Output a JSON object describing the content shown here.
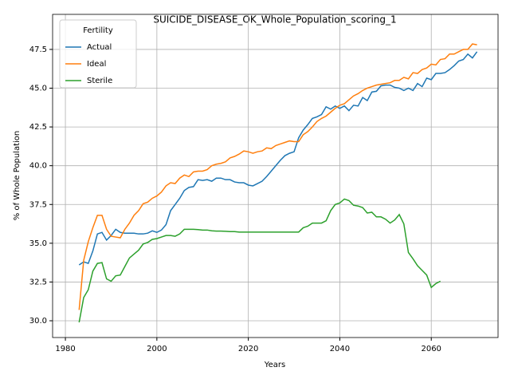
{
  "chart_data": {
    "type": "line",
    "title": "SUICIDE_DISEASE_OK_Whole_Population_scoring_1",
    "x_label": "Years",
    "y_label": "% of Whole Population",
    "legend_title": "Fertility",
    "legend_position": "upper left",
    "grid": true,
    "x": [
      1983,
      1984,
      1985,
      1986,
      1987,
      1988,
      1989,
      1990,
      1991,
      1992,
      1993,
      1994,
      1995,
      1996,
      1997,
      1998,
      1999,
      2000,
      2001,
      2002,
      2003,
      2004,
      2005,
      2006,
      2007,
      2008,
      2009,
      2010,
      2011,
      2012,
      2013,
      2014,
      2015,
      2016,
      2017,
      2018,
      2019,
      2020,
      2021,
      2022,
      2023,
      2024,
      2025,
      2026,
      2027,
      2028,
      2029,
      2030,
      2031,
      2032,
      2033,
      2034,
      2035,
      2036,
      2037,
      2038,
      2039,
      2040,
      2041,
      2042,
      2043,
      2044,
      2045,
      2046,
      2047,
      2048,
      2049,
      2050,
      2051,
      2052,
      2053,
      2054,
      2055,
      2056,
      2057,
      2058,
      2059,
      2060,
      2061,
      2062,
      2063,
      2064,
      2065,
      2066,
      2067,
      2068,
      2069,
      2070
    ],
    "series": [
      {
        "name": "Actual",
        "color": "#1f77b4",
        "values": [
          33.6,
          33.8,
          33.7,
          34.5,
          35.6,
          35.7,
          35.2,
          35.5,
          35.9,
          35.7,
          35.65,
          35.65,
          35.65,
          35.6,
          35.6,
          35.65,
          35.8,
          35.7,
          35.85,
          36.2,
          37.1,
          37.5,
          37.9,
          38.4,
          38.6,
          38.65,
          39.1,
          39.05,
          39.1,
          39.0,
          39.2,
          39.2,
          39.1,
          39.1,
          38.95,
          38.9,
          38.9,
          38.75,
          38.7,
          38.85,
          39.0,
          39.3,
          39.65,
          40.0,
          40.35,
          40.65,
          40.8,
          40.9,
          41.8,
          42.3,
          42.65,
          43.05,
          43.15,
          43.3,
          43.8,
          43.65,
          43.85,
          43.7,
          43.85,
          43.55,
          43.9,
          43.85,
          44.4,
          44.2,
          44.75,
          44.8,
          45.15,
          45.2,
          45.2,
          45.05,
          45.0,
          44.85,
          45.0,
          44.85,
          45.3,
          45.1,
          45.65,
          45.55,
          45.95,
          45.95,
          46.0,
          46.2,
          46.45,
          46.75,
          46.85,
          47.2,
          46.95,
          47.35
        ]
      },
      {
        "name": "Ideal",
        "color": "#ff7f0e",
        "values": [
          30.7,
          33.9,
          35.1,
          36.0,
          36.8,
          36.8,
          35.9,
          35.45,
          35.4,
          35.35,
          35.9,
          36.3,
          36.8,
          37.1,
          37.55,
          37.65,
          37.9,
          38.05,
          38.3,
          38.7,
          38.9,
          38.85,
          39.2,
          39.4,
          39.3,
          39.6,
          39.65,
          39.65,
          39.75,
          40.0,
          40.1,
          40.15,
          40.25,
          40.5,
          40.6,
          40.75,
          40.95,
          40.9,
          40.8,
          40.9,
          40.95,
          41.15,
          41.1,
          41.3,
          41.4,
          41.5,
          41.6,
          41.55,
          41.55,
          42.0,
          42.2,
          42.5,
          42.85,
          43.05,
          43.2,
          43.45,
          43.7,
          43.9,
          44.0,
          44.25,
          44.5,
          44.65,
          44.85,
          45.0,
          45.1,
          45.2,
          45.25,
          45.3,
          45.35,
          45.5,
          45.5,
          45.7,
          45.6,
          46.0,
          45.95,
          46.2,
          46.3,
          46.55,
          46.5,
          46.85,
          46.9,
          47.2,
          47.2,
          47.35,
          47.5,
          47.5,
          47.85,
          47.8
        ]
      },
      {
        "name": "Sterile",
        "color": "#2ca02c",
        "values": [
          29.9,
          31.5,
          32.0,
          33.2,
          33.7,
          33.75,
          32.7,
          32.55,
          32.9,
          32.95,
          33.5,
          34.05,
          34.3,
          34.55,
          34.95,
          35.05,
          35.25,
          35.3,
          35.4,
          35.5,
          35.5,
          35.45,
          35.6,
          35.9,
          35.9,
          35.9,
          35.88,
          35.85,
          35.85,
          35.8,
          35.78,
          35.78,
          35.77,
          35.75,
          35.75,
          35.72,
          35.72,
          35.72,
          35.72,
          35.72,
          35.72,
          35.72,
          35.72,
          35.72,
          35.72,
          35.72,
          35.72,
          35.72,
          35.72,
          36.0,
          36.1,
          36.3,
          36.3,
          36.3,
          36.45,
          37.1,
          37.5,
          37.6,
          37.85,
          37.75,
          37.45,
          37.4,
          37.3,
          36.95,
          37.0,
          36.7,
          36.7,
          36.55,
          36.3,
          36.5,
          36.85,
          36.25,
          34.4,
          34.0,
          33.55,
          33.25,
          32.95,
          32.15,
          32.4,
          32.55,
          null,
          null,
          null,
          null,
          null,
          null,
          null,
          null
        ]
      }
    ],
    "xlim": [
      1977.2,
      2074.6
    ],
    "xticks": [
      1980,
      2000,
      2020,
      2040,
      2060
    ],
    "ylim": [
      28.92,
      49.76
    ],
    "yticks": [
      {
        "value": 30,
        "label": "30.0"
      },
      32.5,
      {
        "value": 35,
        "label": "35.0"
      },
      37.5,
      {
        "value": 40,
        "label": "40.0"
      },
      42.5,
      {
        "value": 45,
        "label": "45.0"
      },
      47.5
    ]
  }
}
